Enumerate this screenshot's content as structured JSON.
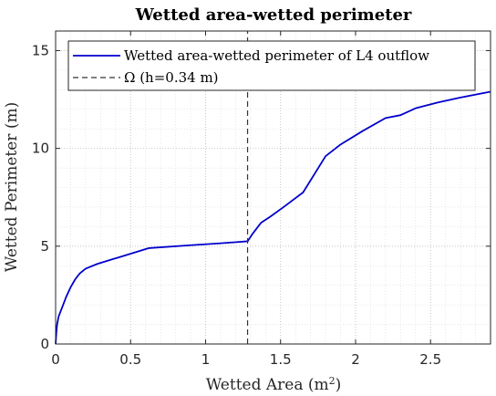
{
  "chart_data": {
    "type": "line",
    "title": "Wetted area-wetted perimeter",
    "xlabel_main": "Wetted Area (m",
    "xlabel_sup": "2",
    "xlabel_close": ")",
    "ylabel": "Wetted Perimeter (m)",
    "xlim": [
      0,
      2.9
    ],
    "ylim": [
      0,
      16
    ],
    "xticks": [
      0,
      0.5,
      1,
      1.5,
      2,
      2.5
    ],
    "xtick_labels": [
      "0",
      "0.5",
      "1",
      "1.5",
      "2",
      "2.5"
    ],
    "yticks": [
      0,
      5,
      10,
      15
    ],
    "ytick_labels": [
      "0",
      "5",
      "10",
      "15"
    ],
    "grid": "dotted",
    "legend_placement": "top-right",
    "series": [
      {
        "name": "Wetted area-wetted perimeter of L4 outflow",
        "color": "#0000cc",
        "style": "solid",
        "x": [
          0,
          0.005,
          0.01,
          0.02,
          0.04,
          0.07,
          0.1,
          0.13,
          0.16,
          0.2,
          0.28,
          0.43,
          0.62,
          0.9,
          1.1,
          1.28,
          1.31,
          1.37,
          1.43,
          1.52,
          1.65,
          1.8,
          1.9,
          2.05,
          2.2,
          2.3,
          2.4,
          2.55,
          2.7,
          2.9
        ],
        "y": [
          0,
          0.6,
          1.0,
          1.4,
          1.8,
          2.4,
          2.9,
          3.3,
          3.6,
          3.85,
          4.1,
          4.45,
          4.9,
          5.05,
          5.15,
          5.25,
          5.6,
          6.2,
          6.5,
          7.0,
          7.75,
          9.6,
          10.2,
          10.9,
          11.55,
          11.7,
          12.05,
          12.35,
          12.6,
          12.9
        ]
      },
      {
        "name": "Ω (h=0.34 m)",
        "color": "#333333",
        "style": "dashed",
        "x": [
          1.28,
          1.28
        ],
        "y": [
          0,
          16
        ]
      }
    ]
  }
}
